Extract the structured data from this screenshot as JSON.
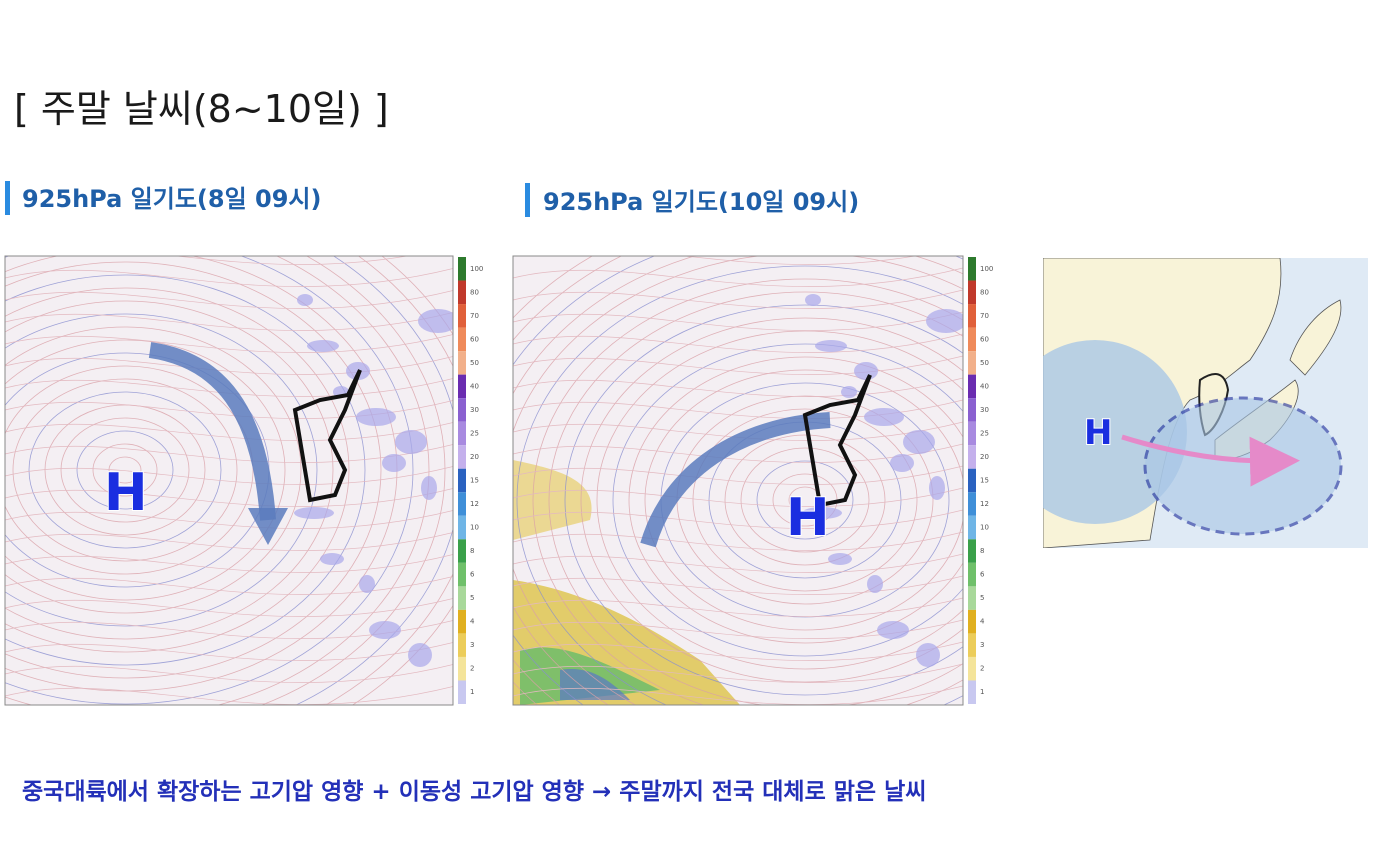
{
  "slide": {
    "title": "[ 주말 날씨(8~10일) ]",
    "panels": [
      {
        "title": "925hPa 일기도(8일 09시)",
        "marker": "H"
      },
      {
        "title": "925hPa 일기도(10일 09시)",
        "marker": "H"
      }
    ],
    "colorbar_labels": [
      "100",
      "80",
      "70",
      "60",
      "50",
      "40",
      "30",
      "25",
      "20",
      "15",
      "12",
      "10",
      "8",
      "6",
      "5",
      "4",
      "3",
      "2",
      "1"
    ],
    "schematic": {
      "marker": "H"
    },
    "caption": "중국대륙에서 확장하는 고기압 영향 + 이동성 고기압 영향 → 주말까지 전국 대체로 맑은 날씨"
  }
}
